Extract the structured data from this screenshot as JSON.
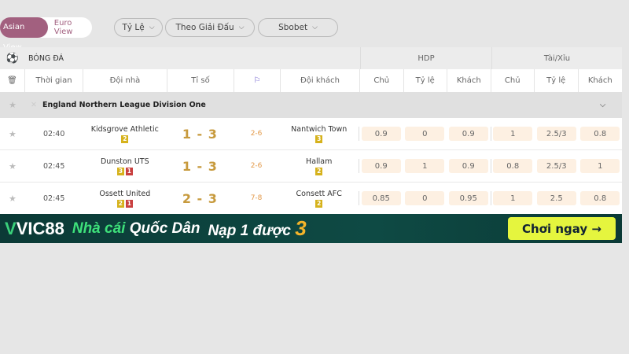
{
  "view_toggle": {
    "asian": "Asian View",
    "euro": "Euro View",
    "accent": "#a2607f"
  },
  "filters": [
    {
      "label": "Tỷ Lệ"
    },
    {
      "label": "Theo Giải Đấu"
    },
    {
      "label": "Sbobet"
    }
  ],
  "table": {
    "sport": "BÓNG ĐÁ",
    "hdp": "HDP",
    "tx": "Tài/Xỉu",
    "cols": {
      "time": "Thời gian",
      "home": "Đội nhà",
      "score": "Tỉ số",
      "away": "Đội khách",
      "chu": "Chủ",
      "tyle": "Tỷ lệ",
      "khach": "Khách"
    },
    "league": "England Northern League Division One",
    "matches": [
      {
        "time": "02:40",
        "home": "Kidsgrove Athletic",
        "home_yellow": "2",
        "home_red": "",
        "score": "1 - 3",
        "corner": "2-6",
        "away": "Nantwich Town",
        "away_yellow": "3",
        "hdp": [
          "0.9",
          "0",
          "0.9"
        ],
        "tx": [
          "1",
          "2.5/3",
          "0.8"
        ]
      },
      {
        "time": "02:45",
        "home": "Dunston UTS",
        "home_yellow": "3",
        "home_red": "1",
        "score": "1 - 3",
        "corner": "2-6",
        "away": "Hallam",
        "away_yellow": "2",
        "hdp": [
          "0.9",
          "1",
          "0.9"
        ],
        "tx": [
          "0.8",
          "2.5/3",
          "1"
        ]
      },
      {
        "time": "02:45",
        "home": "Ossett United",
        "home_yellow": "2",
        "home_red": "1",
        "score": "2 - 3",
        "corner": "7-8",
        "away": "Consett AFC",
        "away_yellow": "2",
        "hdp": [
          "0.85",
          "0",
          "0.95"
        ],
        "tx": [
          "1",
          "2.5",
          "0.8"
        ]
      }
    ]
  },
  "banner": {
    "brand": "VIC88",
    "slogan_a": "Nhà cái",
    "slogan_b": "Quốc Dân",
    "promo": "Nạp 1 được",
    "promo_num": "3",
    "cta": "Chơi ngay →"
  }
}
